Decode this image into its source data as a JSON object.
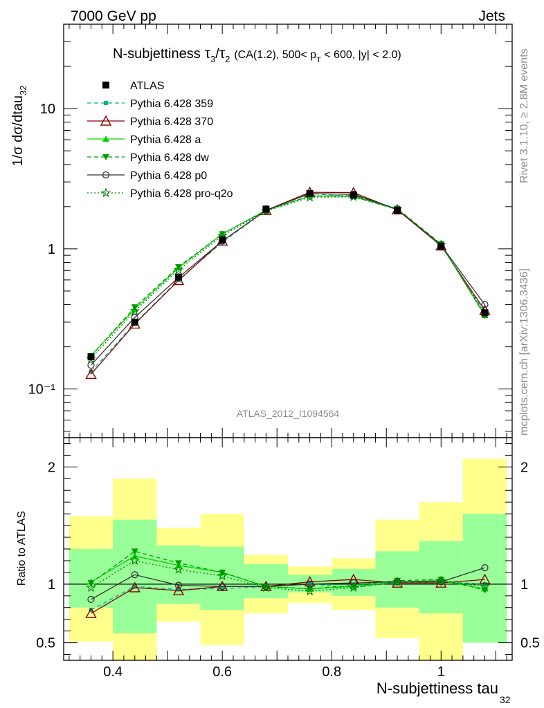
{
  "header": {
    "left": "7000 GeV pp",
    "right": "Jets"
  },
  "side_labels": {
    "rivet": "Rivet 3.1.10, ≥ 2.8M events",
    "mcplots": "mcplots.cern.ch [arXiv:1306.3436]"
  },
  "chart_data": {
    "type": "line",
    "title": "N-subjettiness τ₃/τ₂ (CA(1.2), 500< p_T < 600, |y| < 2.0)",
    "title_parts": {
      "main": "N-subjettiness",
      "tau3": "τ",
      "tau3_sub": "3",
      "slash": "/",
      "tau2": "τ",
      "tau2_sub": "2",
      "cuts_a": "(CA(1.2), 500< p",
      "cuts_sub": "T",
      "cuts_b": " < 600, |y| < 2.0)"
    },
    "watermark": "ATLAS_2012_I1094564",
    "xlabel": "N-subjettiness tau",
    "xlabel_sub": "32",
    "ylabel": "1/σ dσ/dtau",
    "ylabel_sub": "32",
    "ratio_ylabel": "Ratio to ATLAS",
    "xlim": [
      0.31,
      1.13
    ],
    "ylim": [
      0.045,
      40
    ],
    "yscale": "log",
    "ratio_ylim": [
      0.35,
      2.25
    ],
    "x_ticks": [
      {
        "v": 0.4,
        "label": "0.4"
      },
      {
        "v": 0.6,
        "label": "0.6"
      },
      {
        "v": 0.8,
        "label": "0.8"
      },
      {
        "v": 1.0,
        "label": "1"
      }
    ],
    "y_ticks": [
      {
        "v": 10,
        "label": "10"
      },
      {
        "v": 1,
        "label": "1"
      },
      {
        "v": 0.1,
        "label": "10⁻¹"
      }
    ],
    "ratio_ticks": [
      {
        "v": 2,
        "label": "2"
      },
      {
        "v": 1,
        "label": "1"
      },
      {
        "v": 0.5,
        "label": "0.5"
      }
    ],
    "bin_edges": [
      0.32,
      0.4,
      0.48,
      0.56,
      0.64,
      0.72,
      0.8,
      0.88,
      0.96,
      1.04,
      1.12
    ],
    "x": [
      0.36,
      0.44,
      0.52,
      0.6,
      0.68,
      0.76,
      0.84,
      0.92,
      1.0,
      1.08
    ],
    "band_outer": {
      "low": [
        0.51,
        0.35,
        0.68,
        0.48,
        0.75,
        0.84,
        0.78,
        0.54,
        0.35,
        0.5
      ],
      "high": [
        1.58,
        1.9,
        1.48,
        1.6,
        1.25,
        1.15,
        1.22,
        1.55,
        1.7,
        2.07
      ]
    },
    "band_inner": {
      "low": [
        0.8,
        0.58,
        0.83,
        0.78,
        0.88,
        0.93,
        0.9,
        0.8,
        0.75,
        0.5
      ],
      "high": [
        1.3,
        1.55,
        1.33,
        1.32,
        1.17,
        1.08,
        1.13,
        1.28,
        1.37,
        1.6
      ]
    },
    "series": [
      {
        "name": "ATLAS",
        "marker": "square-filled",
        "color": "#000000",
        "dash": "",
        "values": [
          0.17,
          0.3,
          0.63,
          1.16,
          1.92,
          2.48,
          2.42,
          1.88,
          1.04,
          0.35
        ],
        "ratio": [
          1,
          1,
          1,
          1,
          1,
          1,
          1,
          1,
          1,
          1
        ]
      },
      {
        "name": "Pythia 6.428 359",
        "marker": "square-small",
        "color": "#00b289",
        "dash": "6,4",
        "values": [
          0.133,
          0.294,
          0.601,
          1.116,
          1.877,
          2.48,
          2.354,
          1.906,
          1.061,
          0.35
        ],
        "ratio": [
          0.78,
          0.98,
          0.955,
          0.962,
          0.978,
          1.0,
          0.973,
          1.014,
          1.02,
          1.0
        ]
      },
      {
        "name": "Pythia 6.428 370",
        "marker": "triangle-up-open",
        "color": "#8b0000",
        "dash": "",
        "values": [
          0.1275,
          0.291,
          0.595,
          1.137,
          1.882,
          2.53,
          2.516,
          1.899,
          1.051,
          0.364
        ],
        "ratio": [
          0.75,
          0.97,
          0.945,
          0.98,
          0.98,
          1.02,
          1.04,
          1.01,
          1.01,
          1.04
        ]
      },
      {
        "name": "Pythia 6.428 a",
        "marker": "triangle-up-filled",
        "color": "#00d300",
        "dash": "",
        "values": [
          0.173,
          0.372,
          0.731,
          1.276,
          1.882,
          2.381,
          2.372,
          1.918,
          1.071,
          0.336
        ],
        "ratio": [
          1.02,
          1.24,
          1.16,
          1.1,
          0.98,
          0.96,
          0.98,
          1.02,
          1.03,
          0.96
        ]
      },
      {
        "name": "Pythia 6.428 dw",
        "marker": "triangle-down-filled",
        "color": "#00a000",
        "dash": "6,4",
        "values": [
          0.172,
          0.384,
          0.744,
          1.276,
          1.882,
          2.381,
          2.396,
          1.937,
          1.082,
          0.333
        ],
        "ratio": [
          1.01,
          1.28,
          1.18,
          1.1,
          0.98,
          0.96,
          0.99,
          1.03,
          1.04,
          0.95
        ]
      },
      {
        "name": "Pythia 6.428 p0",
        "marker": "circle-open",
        "color": "#333333",
        "dash": "",
        "values": [
          0.148,
          0.324,
          0.624,
          1.137,
          1.882,
          2.48,
          2.444,
          1.918,
          1.061,
          0.4
        ],
        "ratio": [
          0.87,
          1.08,
          0.99,
          0.98,
          0.98,
          1.0,
          1.01,
          1.02,
          1.02,
          1.14
        ]
      },
      {
        "name": "Pythia 6.428 pro-q2o",
        "marker": "star-open",
        "color": "#008000",
        "dash": "2,3",
        "values": [
          0.165,
          0.36,
          0.709,
          1.241,
          1.862,
          2.331,
          2.348,
          1.918,
          1.071,
          0.343
        ],
        "ratio": [
          0.97,
          1.2,
          1.125,
          1.07,
          0.97,
          0.94,
          0.97,
          1.02,
          1.03,
          0.98
        ]
      }
    ]
  }
}
